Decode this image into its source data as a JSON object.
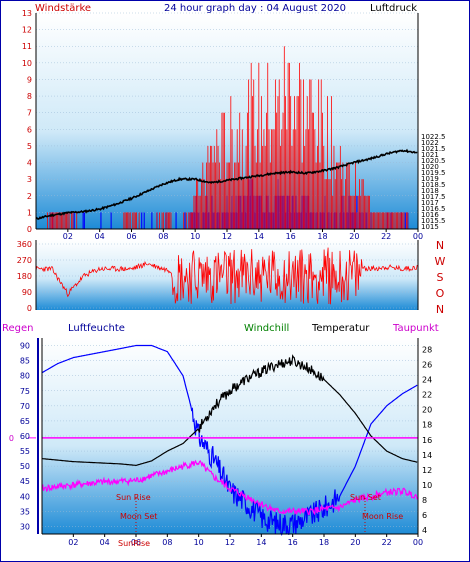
{
  "header": {
    "left_label": "Windstärke",
    "title": "24 hour graph day : 04 August 2020",
    "right_label": "Luftdruck"
  },
  "wind_dir_labels": [
    "N",
    "W",
    "S",
    "O",
    "N"
  ],
  "bottom_header": {
    "regen": "Regen",
    "luftfeuchte": "Luftfeuchte",
    "windchill": "Windchill",
    "temperatur": "Temperatur",
    "taupunkt": "Taupunkt"
  },
  "annotations": {
    "sun_rise": "Sun Rise",
    "sun_set": "Sun Set",
    "moon_set": "Moon Set",
    "moon_rise": "Moon Rise",
    "overlap_label": "SunRise"
  },
  "colors": {
    "frame": "#0000aa",
    "wind_gust": "#ff0000",
    "wind_avg": "#0000ff",
    "pressure": "#000000",
    "temperature": "#000000",
    "humidity": "#0000ff",
    "dewpoint": "#ff00ff",
    "rain": "#ff00ff",
    "windchill": "#008000",
    "label_red": "#cc0000",
    "label_blue": "#000099",
    "label_magenta": "#cc00cc"
  },
  "chart_data": [
    {
      "type": "line",
      "name": "wind_and_pressure",
      "x_ticks": [
        "02",
        "04",
        "06",
        "08",
        "10",
        "12",
        "14",
        "16",
        "18",
        "20",
        "22",
        "00"
      ],
      "y_left": {
        "label": "Windstärke",
        "ylim": [
          0,
          13
        ],
        "ticks": [
          0,
          1,
          2,
          3,
          4,
          5,
          6,
          7,
          8,
          9,
          10,
          11,
          12,
          13
        ]
      },
      "y_right": {
        "label": "Luftdruck",
        "ylim": [
          1014.75,
          1032.75
        ],
        "ticks": [
          "1015",
          "1015.5",
          "1016",
          "1016.5",
          "1017",
          "1017.5",
          "1018",
          "1018.5",
          "1019",
          "1019.5",
          "1020",
          "1020.5",
          "1021",
          "1021.5",
          "1022",
          "1022.5",
          "1023",
          "1023.5",
          "1024",
          "1024.5",
          "1025",
          "1025.5",
          "1026",
          "1026.5",
          "1027",
          "1027.5",
          "1028",
          "1028.5",
          "1029",
          "1029.5",
          "1030",
          "1030.5",
          "1031",
          "1031.5",
          "1032",
          "1032.5"
        ],
        "shown_ticks": [
          "1015",
          "1015.5",
          "1016",
          "1016.5",
          "1017",
          "1017.5",
          "1018",
          "1018.5",
          "1019",
          "1019.5",
          "1020",
          "1020.5",
          "1021",
          "1021.5",
          "1022",
          "1022.5"
        ]
      },
      "pressure": {
        "x": [
          0,
          1,
          2,
          3,
          4,
          5,
          6,
          7,
          8,
          9,
          10,
          11,
          12,
          13,
          14,
          15,
          16,
          17,
          18,
          19,
          20,
          21,
          22,
          23,
          24
        ],
        "y": [
          1015.6,
          1015.9,
          1016.1,
          1016.2,
          1016.4,
          1016.8,
          1017.3,
          1017.9,
          1018.5,
          1018.9,
          1018.9,
          1018.6,
          1018.8,
          1019.0,
          1019.2,
          1019.4,
          1019.5,
          1019.4,
          1019.6,
          1019.9,
          1020.3,
          1020.6,
          1021.0,
          1021.3,
          1021.1
        ]
      },
      "wind_gust": {
        "x": [
          0,
          1,
          2,
          3,
          4,
          5,
          6,
          7,
          8,
          9,
          10,
          11,
          12,
          13,
          14,
          15,
          16,
          17,
          18,
          19,
          20,
          21,
          22,
          23,
          24
        ],
        "y": [
          0,
          1,
          1,
          0,
          0,
          0,
          1,
          0,
          1,
          0,
          2,
          5,
          6,
          7,
          8,
          8,
          10,
          8,
          7,
          5,
          3,
          2,
          1,
          1,
          0
        ]
      },
      "wind_avg": {
        "x": [
          0,
          1,
          2,
          3,
          4,
          5,
          6,
          7,
          8,
          9,
          10,
          11,
          12,
          13,
          14,
          15,
          16,
          17,
          18,
          19,
          20,
          21,
          22,
          23,
          24
        ],
        "y": [
          0,
          0,
          0,
          0,
          0,
          0,
          0,
          0,
          0,
          0,
          1,
          1,
          1,
          2,
          2,
          2,
          2,
          1,
          1,
          1,
          1,
          0,
          0,
          0,
          0
        ]
      }
    },
    {
      "type": "line",
      "name": "wind_direction",
      "ylim": [
        0,
        360
      ],
      "y_ticks": [
        0,
        90,
        180,
        270,
        360
      ],
      "x": [
        0,
        1,
        2,
        3,
        4,
        5,
        6,
        7,
        8,
        9,
        10,
        11,
        12,
        13,
        14,
        15,
        16,
        17,
        18,
        19,
        20,
        21,
        22,
        23,
        24
      ],
      "y": [
        220,
        220,
        80,
        180,
        220,
        220,
        220,
        250,
        220,
        200,
        210,
        180,
        220,
        170,
        230,
        200,
        190,
        220,
        210,
        230,
        240,
        220,
        230,
        220,
        230
      ]
    },
    {
      "type": "line",
      "name": "temperature_humidity",
      "x_ticks": [
        "02",
        "04",
        "06",
        "08",
        "10",
        "12",
        "14",
        "16",
        "18",
        "20",
        "22",
        "00"
      ],
      "y_left": {
        "label": "Luftfeuchte",
        "ylim": [
          27.5,
          92.5
        ],
        "ticks": [
          30,
          35,
          40,
          45,
          50,
          55,
          60,
          65,
          70,
          75,
          80,
          85,
          90
        ]
      },
      "y_right": {
        "label": "Temperatur",
        "ylim": [
          3.5,
          29.5
        ],
        "ticks": [
          4,
          6,
          8,
          10,
          12,
          14,
          16,
          18,
          20,
          22,
          24,
          26,
          28
        ]
      },
      "rain_marker": {
        "label": "0",
        "value": 0
      },
      "humidity": {
        "x": [
          0,
          1,
          2,
          3,
          4,
          5,
          6,
          7,
          8,
          9,
          10,
          11,
          12,
          13,
          14,
          15,
          16,
          17,
          18,
          19,
          20,
          21,
          22,
          23,
          24
        ],
        "y": [
          81,
          84,
          86,
          87,
          88,
          89,
          90,
          90,
          88,
          80,
          60,
          52,
          42,
          38,
          33,
          31,
          31,
          33,
          36,
          40,
          50,
          64,
          70,
          74,
          77
        ]
      },
      "temperature": {
        "x": [
          0,
          1,
          2,
          3,
          4,
          5,
          6,
          7,
          8,
          9,
          10,
          11,
          12,
          13,
          14,
          15,
          16,
          17,
          18,
          19,
          20,
          21,
          22,
          23,
          24
        ],
        "y": [
          13.5,
          13.3,
          13.1,
          13.0,
          12.9,
          12.8,
          12.6,
          13.2,
          14.5,
          15.5,
          17.5,
          20.5,
          22.5,
          24.0,
          25.0,
          26.0,
          26.5,
          25.5,
          24.0,
          22.0,
          19.5,
          16.5,
          14.5,
          13.5,
          13.0
        ]
      },
      "dewpoint": {
        "x": [
          0,
          1,
          2,
          3,
          4,
          5,
          6,
          7,
          8,
          9,
          10,
          11,
          12,
          13,
          14,
          15,
          16,
          17,
          18,
          19,
          20,
          21,
          22,
          23,
          24
        ],
        "y": [
          9.5,
          9.8,
          10.0,
          10.2,
          10.4,
          10.5,
          10.6,
          11.2,
          11.8,
          12.5,
          13.0,
          11.0,
          9.5,
          8.5,
          7.5,
          6.5,
          6.5,
          6.5,
          6.8,
          7.0,
          8.0,
          8.5,
          9.0,
          9.2,
          8.5
        ]
      }
    }
  ]
}
